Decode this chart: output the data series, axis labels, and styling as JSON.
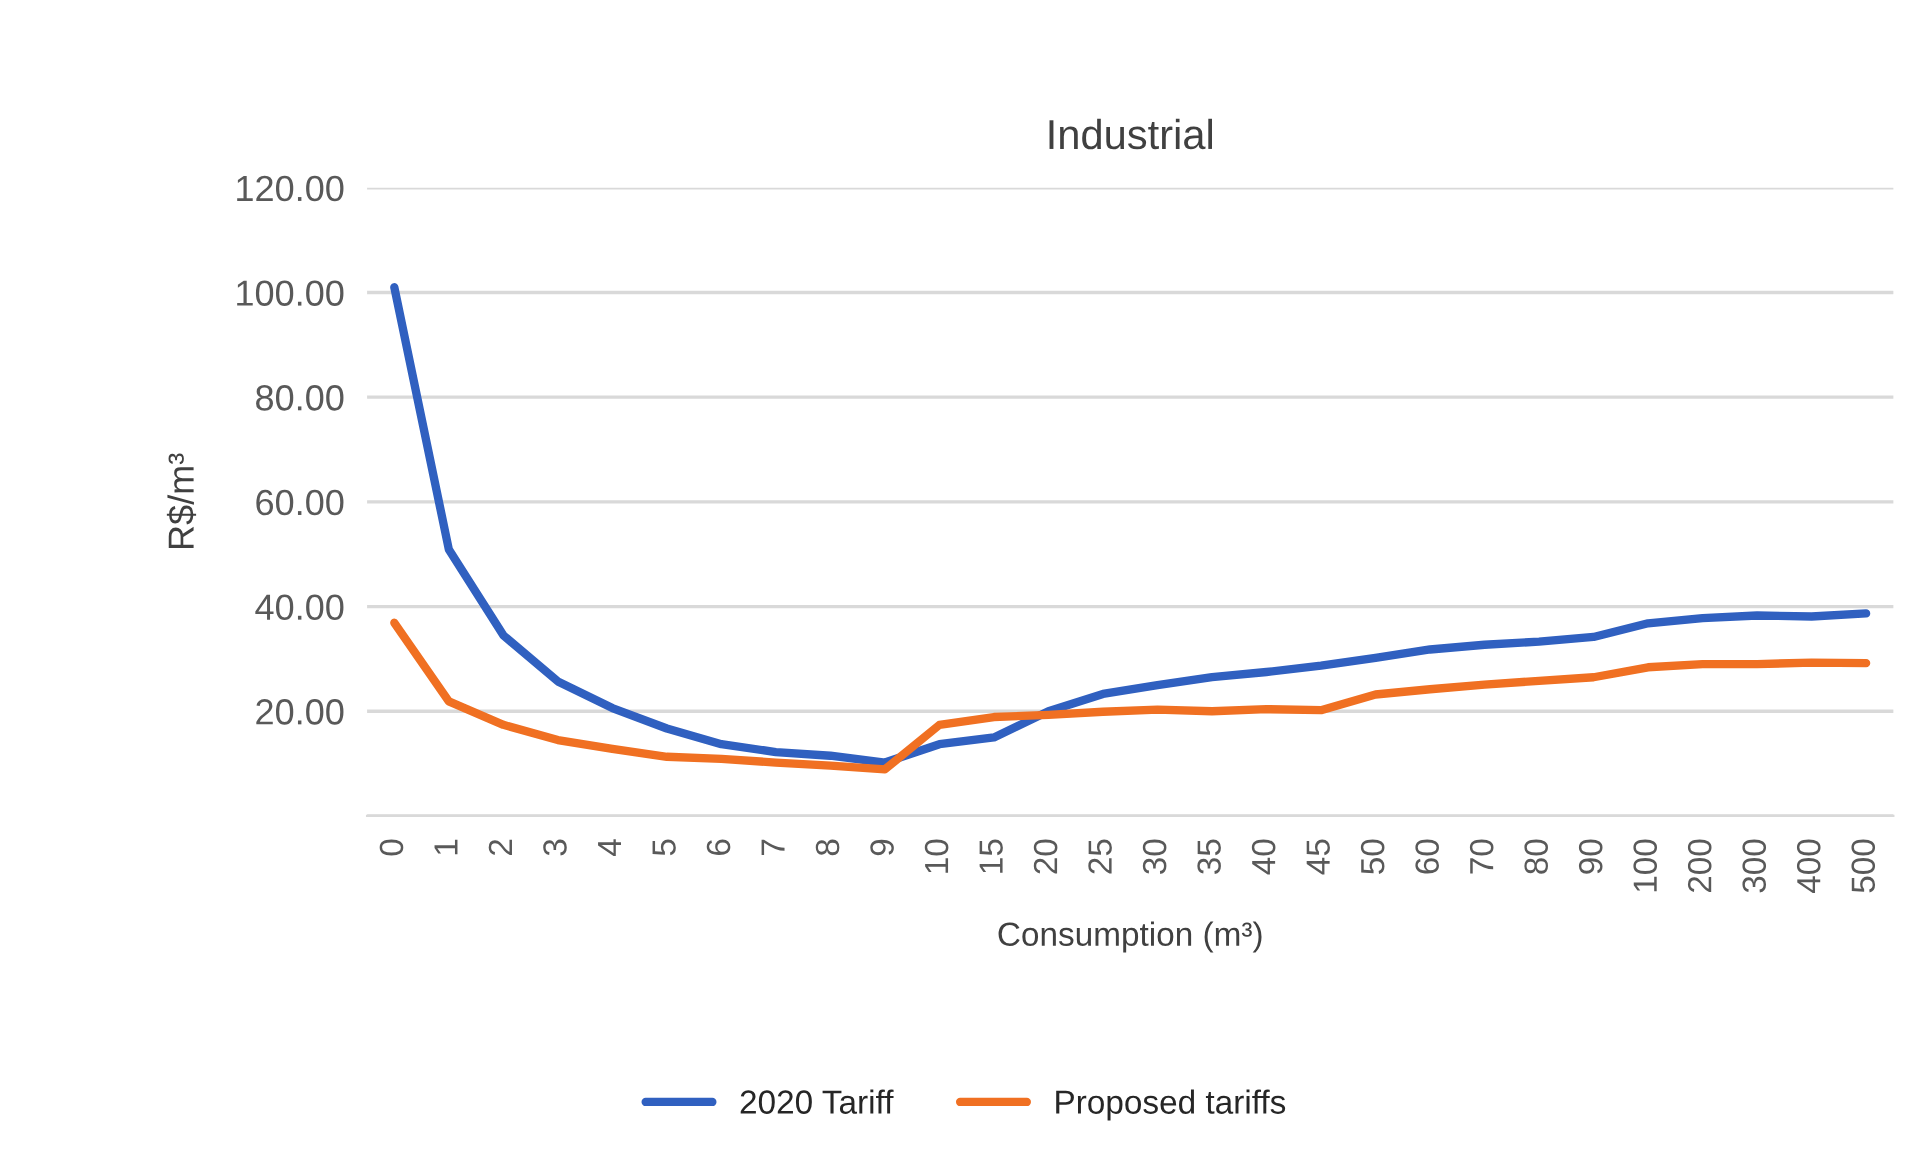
{
  "chart_data": {
    "type": "line",
    "title": "Industrial",
    "xlabel": "Consumption (m³)",
    "ylabel": "R$/m³",
    "categories": [
      "0",
      "1",
      "2",
      "3",
      "4",
      "5",
      "6",
      "7",
      "8",
      "9",
      "10",
      "15",
      "20",
      "25",
      "30",
      "35",
      "40",
      "45",
      "50",
      "60",
      "70",
      "80",
      "90",
      "100",
      "200",
      "300",
      "400",
      "500"
    ],
    "series": [
      {
        "name": "2020 Tariff",
        "color": "#3060c0",
        "values": [
          101,
          50.9,
          34.5,
          25.7,
          20.6,
          16.7,
          13.7,
          12.2,
          11.5,
          10.2,
          13.7,
          15,
          20,
          23.3,
          25,
          26.5,
          27.5,
          28.7,
          30.2,
          31.8,
          32.7,
          33.3,
          34.2,
          36.8,
          37.8,
          38.3,
          38.1,
          38.7
        ]
      },
      {
        "name": "Proposed tariffs",
        "color": "#f07022",
        "values": [
          36.9,
          21.9,
          17.4,
          14.5,
          12.8,
          11.3,
          10.9,
          10.2,
          9.6,
          8.9,
          17.4,
          18.9,
          19.3,
          19.9,
          20.3,
          20.0,
          20.4,
          20.2,
          23.2,
          24.2,
          25.1,
          25.8,
          26.5,
          28.4,
          29,
          29,
          29.3,
          29.2
        ]
      }
    ],
    "ylim": [
      0,
      120
    ],
    "yticks": [
      {
        "value": 0,
        "label": null
      },
      {
        "value": 20,
        "label": "20.00"
      },
      {
        "value": 40,
        "label": "40.00"
      },
      {
        "value": 60,
        "label": "60.00"
      },
      {
        "value": 80,
        "label": "80.00"
      },
      {
        "value": 100,
        "label": "100.00"
      },
      {
        "value": 120,
        "label": "120.00"
      }
    ],
    "grid": "y",
    "legend": "bottom",
    "marker": "none",
    "line_style": "solid"
  }
}
